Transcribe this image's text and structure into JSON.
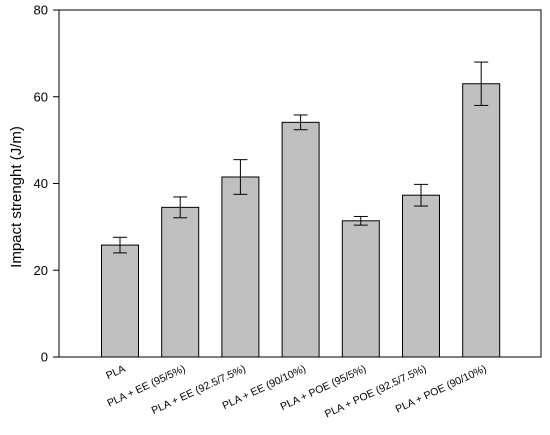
{
  "chart_data": {
    "type": "bar",
    "title": "",
    "xlabel": "",
    "ylabel": "Impact strenght (J/m)",
    "ylim": [
      0,
      80
    ],
    "yticks": [
      0,
      20,
      40,
      60,
      80
    ],
    "grid": false,
    "categories": [
      "PLA",
      "PLA + EE (95/5%)",
      "PLA + EE (92.5/7.5%)",
      "PLA + EE (90/10%)",
      "PLA + POE (95/5%)",
      "PLA + POE (92.5/7.5%)",
      "PLA + POE (90/10%)"
    ],
    "values": [
      25.8,
      34.5,
      41.5,
      54.1,
      31.4,
      37.3,
      63.0
    ],
    "errors": [
      1.8,
      2.4,
      4.0,
      1.7,
      1.0,
      2.5,
      5.0
    ],
    "colors": {
      "bar": "#c0c0c0",
      "edge": "#000000"
    }
  }
}
